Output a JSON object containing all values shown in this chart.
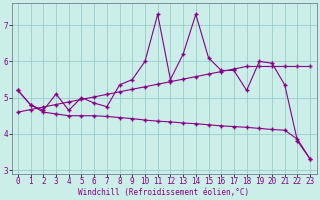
{
  "xlabel": "Windchill (Refroidissement éolien,°C)",
  "bg_color": "#cceee8",
  "line_color": "#880088",
  "grid_color": "#99cccc",
  "x": [
    0,
    1,
    2,
    3,
    4,
    5,
    6,
    7,
    8,
    9,
    10,
    11,
    12,
    13,
    14,
    15,
    16,
    17,
    18,
    19,
    20,
    21,
    22,
    23
  ],
  "y_main": [
    5.2,
    4.8,
    4.65,
    5.1,
    4.65,
    5.0,
    4.85,
    4.75,
    5.35,
    5.5,
    6.0,
    7.3,
    5.5,
    6.2,
    7.3,
    6.1,
    5.75,
    5.75,
    5.2,
    6.0,
    5.95,
    5.35,
    3.8,
    3.3
  ],
  "y_trend": [
    4.6,
    4.67,
    4.74,
    4.81,
    4.88,
    4.95,
    5.02,
    5.09,
    5.16,
    5.23,
    5.3,
    5.37,
    5.44,
    5.51,
    5.58,
    5.65,
    5.72,
    5.79,
    5.86,
    5.86,
    5.86,
    5.86,
    5.86,
    5.86
  ],
  "y_low": [
    5.2,
    4.8,
    4.6,
    4.55,
    4.5,
    4.5,
    4.5,
    4.48,
    4.45,
    4.42,
    4.38,
    4.35,
    4.33,
    4.3,
    4.28,
    4.25,
    4.22,
    4.2,
    4.18,
    4.15,
    4.12,
    4.1,
    3.85,
    3.3
  ],
  "xlim": [
    -0.5,
    23.5
  ],
  "ylim": [
    2.9,
    7.6
  ],
  "yticks": [
    3,
    4,
    5,
    6,
    7
  ],
  "xticks": [
    0,
    1,
    2,
    3,
    4,
    5,
    6,
    7,
    8,
    9,
    10,
    11,
    12,
    13,
    14,
    15,
    16,
    17,
    18,
    19,
    20,
    21,
    22,
    23
  ]
}
